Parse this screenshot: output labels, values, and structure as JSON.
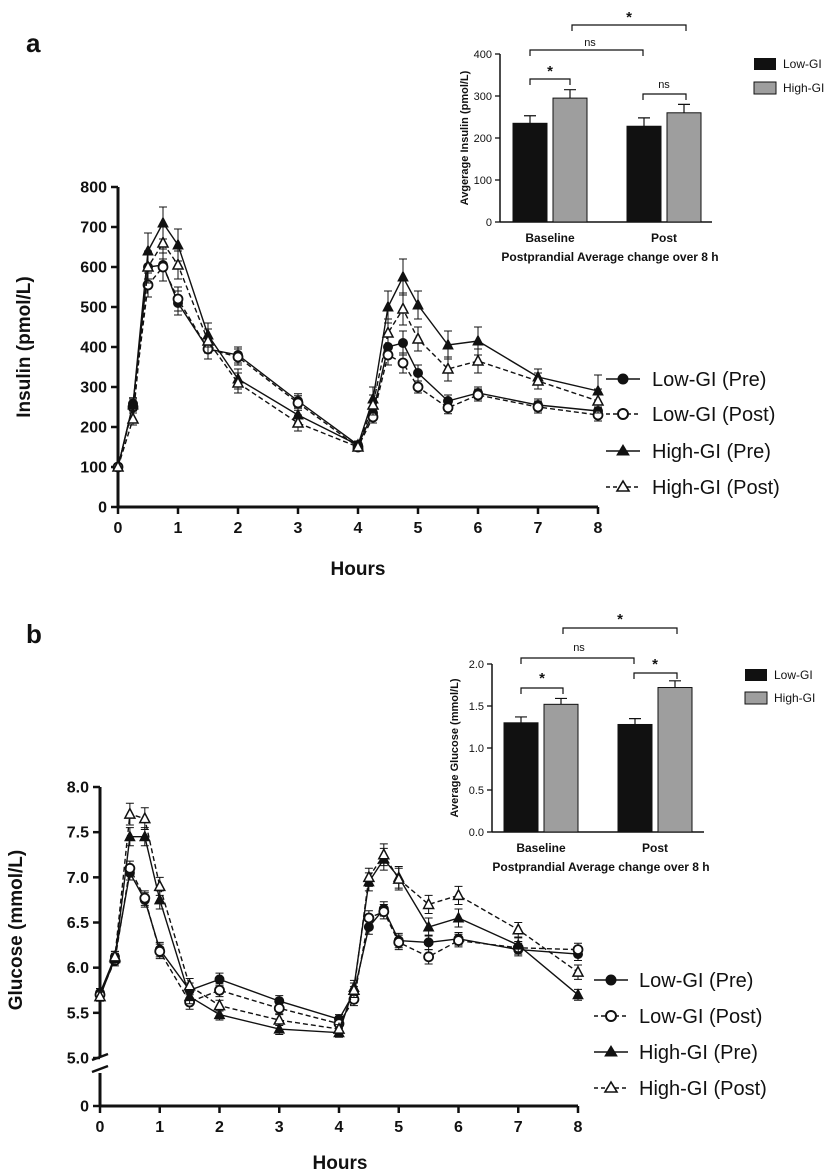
{
  "panels": [
    {
      "label": "a",
      "main": {
        "ylabel": "Insulin (pmol/L)",
        "xlabel": "Hours",
        "xticks": [
          "0",
          "1",
          "2",
          "3",
          "4",
          "5",
          "6",
          "7",
          "8"
        ],
        "yticks": [
          "0",
          "100",
          "200",
          "300",
          "400",
          "500",
          "600",
          "700",
          "800"
        ]
      },
      "inset": {
        "ylabel": "Avgerage Insulin (pmol/L)",
        "xlabel": "Postprandial Average change over 8 h",
        "categories": [
          "Baseline",
          "Post"
        ],
        "yticks": [
          "0",
          "100",
          "200",
          "300",
          "400"
        ],
        "legend": [
          "Low-GI",
          "High-GI"
        ],
        "annotations": [
          "*",
          "ns",
          "ns",
          "*"
        ]
      },
      "legend": [
        "Low-GI (Pre)",
        "Low-GI (Post)",
        "High-GI (Pre)",
        "High-GI (Post)"
      ]
    },
    {
      "label": "b",
      "main": {
        "ylabel": "Glucose (mmol/L)",
        "xlabel": "Hours",
        "xticks": [
          "0",
          "1",
          "2",
          "3",
          "4",
          "5",
          "6",
          "7",
          "8"
        ],
        "yticks": [
          "0",
          "5.0",
          "5.5",
          "6.0",
          "6.5",
          "7.0",
          "7.5",
          "8.0"
        ]
      },
      "inset": {
        "ylabel": "Average Glucose (mmol/L)",
        "xlabel": "Postprandial Average change over 8 h",
        "categories": [
          "Baseline",
          "Post"
        ],
        "yticks": [
          "0.0",
          "0.5",
          "1.0",
          "1.5",
          "2.0"
        ],
        "legend": [
          "Low-GI",
          "High-GI"
        ],
        "annotations": [
          "*",
          "ns",
          "*",
          "*"
        ]
      },
      "legend": [
        "Low-GI (Pre)",
        "Low-GI (Post)",
        "High-GI (Pre)",
        "High-GI (Post)"
      ]
    }
  ],
  "chart_data": [
    {
      "type": "line",
      "title": "",
      "xlabel": "Hours",
      "ylabel": "Insulin (pmol/L)",
      "xlim": [
        0,
        8
      ],
      "ylim": [
        0,
        800
      ],
      "x": [
        0,
        0.25,
        0.5,
        0.75,
        1,
        1.5,
        2,
        3,
        4,
        4.25,
        4.5,
        4.75,
        5,
        5.5,
        6,
        7,
        8
      ],
      "series": [
        {
          "name": "Low-GI (Pre)",
          "marker": "filled-circle",
          "line": "solid",
          "values": [
            100,
            258,
            600,
            605,
            510,
            395,
            380,
            265,
            155,
            235,
            400,
            410,
            335,
            265,
            285,
            255,
            240
          ],
          "errors": [
            8,
            15,
            30,
            40,
            30,
            25,
            20,
            18,
            10,
            15,
            25,
            30,
            20,
            15,
            15,
            15,
            15
          ]
        },
        {
          "name": "Low-GI (Post)",
          "marker": "open-circle",
          "line": "dashed",
          "values": [
            100,
            250,
            555,
            600,
            520,
            395,
            375,
            260,
            150,
            225,
            380,
            360,
            300,
            248,
            280,
            250,
            230
          ],
          "errors": [
            8,
            15,
            30,
            35,
            30,
            25,
            20,
            18,
            10,
            15,
            25,
            25,
            15,
            15,
            15,
            15,
            15
          ]
        },
        {
          "name": "High-GI (Pre)",
          "marker": "filled-triangle",
          "line": "solid",
          "values": [
            100,
            255,
            640,
            710,
            655,
            430,
            320,
            230,
            155,
            270,
            500,
            575,
            505,
            405,
            415,
            325,
            290
          ],
          "errors": [
            8,
            15,
            45,
            40,
            40,
            30,
            25,
            20,
            10,
            30,
            40,
            45,
            35,
            35,
            35,
            20,
            40
          ]
        },
        {
          "name": "High-GI (Post)",
          "marker": "open-triangle",
          "line": "dashed",
          "values": [
            100,
            220,
            600,
            660,
            605,
            415,
            310,
            210,
            150,
            255,
            435,
            495,
            420,
            345,
            365,
            315,
            265
          ],
          "errors": [
            8,
            15,
            40,
            40,
            35,
            30,
            25,
            20,
            10,
            25,
            35,
            40,
            30,
            30,
            30,
            20,
            30
          ]
        }
      ],
      "legend_position": "right",
      "inset": {
        "type": "bar",
        "categories": [
          "Baseline",
          "Post"
        ],
        "ylim": [
          0,
          400
        ],
        "series": [
          {
            "name": "Low-GI",
            "values": [
              235,
              228
            ],
            "errors": [
              18,
              20
            ]
          },
          {
            "name": "High-GI",
            "values": [
              295,
              260
            ],
            "errors": [
              20,
              20
            ]
          }
        ]
      }
    },
    {
      "type": "line",
      "title": "",
      "xlabel": "Hours",
      "ylabel": "Glucose (mmol/L)",
      "xlim": [
        0,
        8
      ],
      "ylim": [
        5.0,
        8.0
      ],
      "axis_break": "between 0 and 5.0",
      "x": [
        0,
        0.25,
        0.5,
        0.75,
        1,
        1.5,
        2,
        3,
        4,
        4.25,
        4.5,
        4.75,
        5,
        5.5,
        6,
        7,
        8
      ],
      "series": [
        {
          "name": "Low-GI (Pre)",
          "marker": "filled-circle",
          "line": "solid",
          "values": [
            5.72,
            6.12,
            7.05,
            6.75,
            6.2,
            5.75,
            5.87,
            5.63,
            5.43,
            5.72,
            6.45,
            6.65,
            6.3,
            6.28,
            6.32,
            6.2,
            6.15
          ],
          "errors": [
            0.05,
            0.06,
            0.08,
            0.08,
            0.08,
            0.08,
            0.07,
            0.06,
            0.05,
            0.07,
            0.08,
            0.08,
            0.08,
            0.08,
            0.07,
            0.07,
            0.07
          ]
        },
        {
          "name": "Low-GI (Post)",
          "marker": "open-circle",
          "line": "dashed",
          "values": [
            5.7,
            6.08,
            7.1,
            6.77,
            6.18,
            5.62,
            5.75,
            5.55,
            5.38,
            5.65,
            6.55,
            6.62,
            6.28,
            6.12,
            6.3,
            6.22,
            6.2
          ],
          "errors": [
            0.05,
            0.06,
            0.08,
            0.08,
            0.08,
            0.08,
            0.07,
            0.06,
            0.05,
            0.07,
            0.08,
            0.08,
            0.08,
            0.08,
            0.07,
            0.07,
            0.07
          ]
        },
        {
          "name": "High-GI (Pre)",
          "marker": "filled-triangle",
          "line": "solid",
          "values": [
            5.68,
            6.1,
            7.45,
            7.45,
            6.75,
            5.68,
            5.48,
            5.32,
            5.28,
            5.78,
            6.95,
            7.2,
            7.0,
            6.45,
            6.55,
            6.25,
            5.7
          ],
          "errors": [
            0.05,
            0.06,
            0.1,
            0.1,
            0.1,
            0.08,
            0.06,
            0.06,
            0.05,
            0.08,
            0.1,
            0.12,
            0.12,
            0.1,
            0.1,
            0.08,
            0.06
          ]
        },
        {
          "name": "High-GI (Post)",
          "marker": "open-triangle",
          "line": "dashed",
          "values": [
            5.68,
            6.12,
            7.7,
            7.65,
            6.9,
            5.8,
            5.58,
            5.42,
            5.32,
            5.75,
            7.0,
            7.25,
            6.98,
            6.7,
            6.8,
            6.42,
            5.95
          ],
          "errors": [
            0.05,
            0.06,
            0.12,
            0.12,
            0.1,
            0.08,
            0.06,
            0.06,
            0.05,
            0.08,
            0.1,
            0.12,
            0.12,
            0.1,
            0.1,
            0.08,
            0.08
          ]
        }
      ],
      "legend_position": "right",
      "inset": {
        "type": "bar",
        "categories": [
          "Baseline",
          "Post"
        ],
        "ylim": [
          0,
          2.0
        ],
        "series": [
          {
            "name": "Low-GI",
            "values": [
              1.3,
              1.28
            ],
            "errors": [
              0.07,
              0.07
            ]
          },
          {
            "name": "High-GI",
            "values": [
              1.52,
              1.72
            ],
            "errors": [
              0.07,
              0.08
            ]
          }
        ]
      }
    }
  ]
}
